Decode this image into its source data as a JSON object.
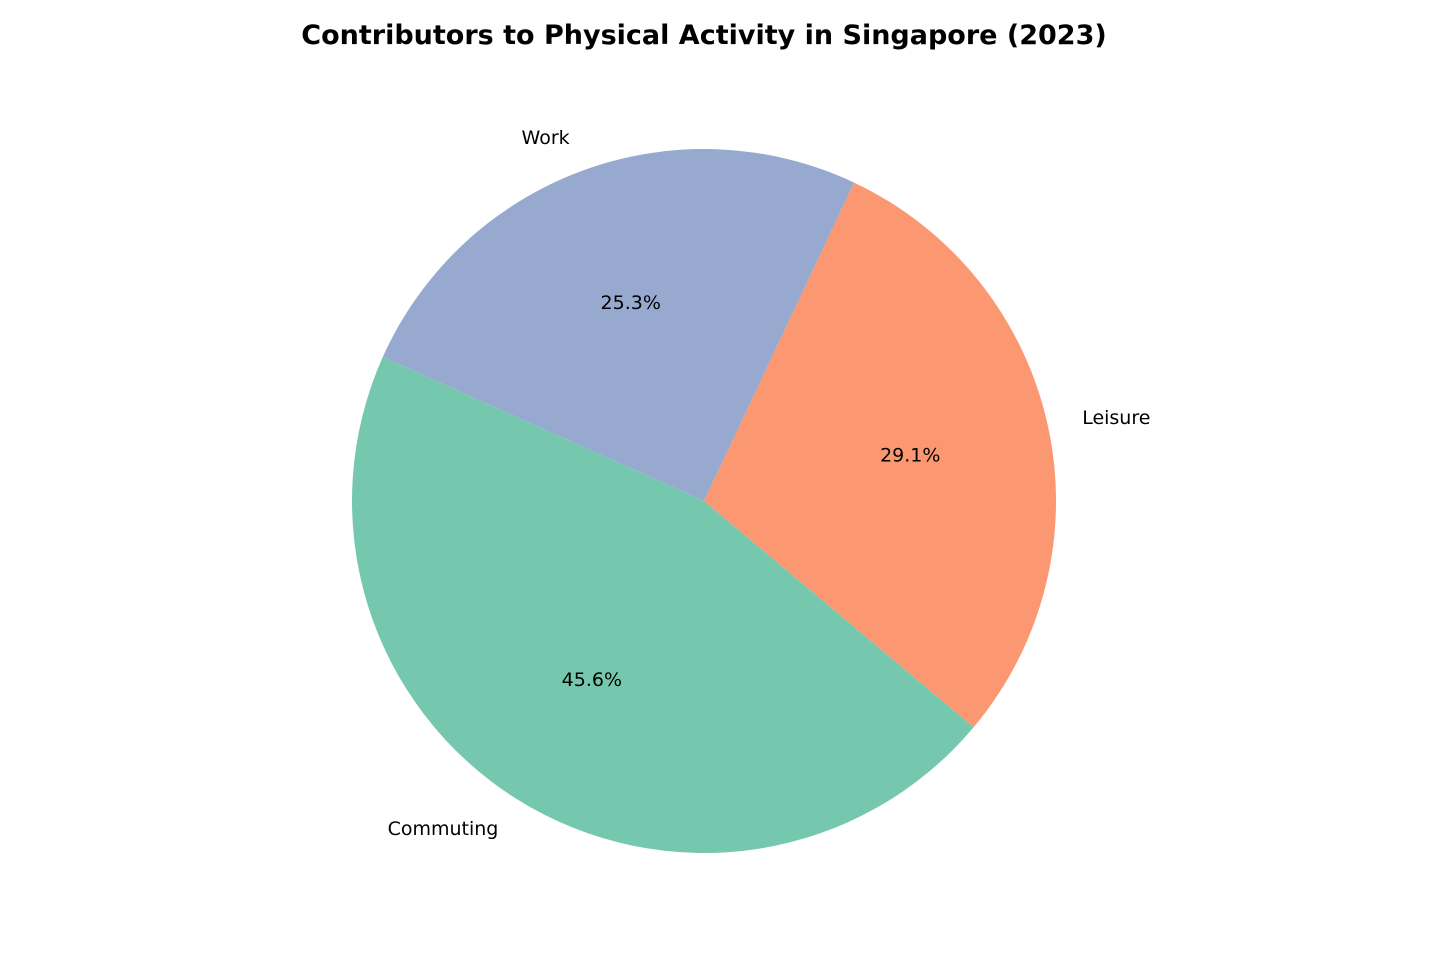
{
  "chart_data": {
    "type": "pie",
    "title": "Contributors to Physical Activity in Singapore (2023)",
    "slices": [
      {
        "label": "Leisure",
        "value": 29.1,
        "pct_label": "29.1%",
        "color": "#fc8d62"
      },
      {
        "label": "Work",
        "value": 25.3,
        "pct_label": "25.3%",
        "color": "#8da0cb"
      },
      {
        "label": "Commuting",
        "value": 45.6,
        "pct_label": "45.6%",
        "color": "#66c2a5"
      }
    ],
    "slice_opacity": 0.9,
    "legend": "none",
    "grid": false
  }
}
